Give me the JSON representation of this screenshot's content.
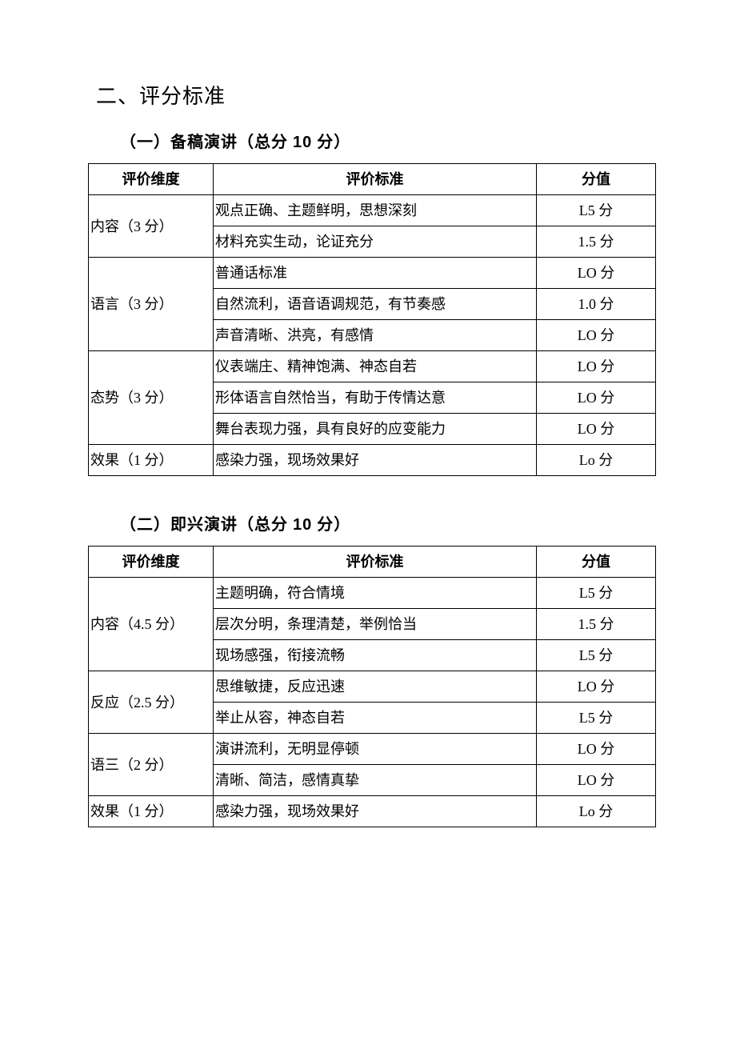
{
  "heading": "二、评分标准",
  "section1": {
    "title_prefix": "（一）备稿演讲（总分 ",
    "title_num": "10",
    "title_suffix": " 分）",
    "headers": [
      "评价维度",
      "评价标准",
      "分值"
    ],
    "groups": [
      {
        "dim": "内容（3 分）",
        "rows": [
          {
            "crit": "观点正确、主题鲜明，思想深刻",
            "score": "L5 分"
          },
          {
            "crit": "材料充实生动，论证充分",
            "score": "1.5 分"
          }
        ]
      },
      {
        "dim": "语言（3 分）",
        "rows": [
          {
            "crit": "普通话标准",
            "score": "LO 分"
          },
          {
            "crit": "自然流利，语音语调规范，有节奏感",
            "score": "1.0 分"
          },
          {
            "crit": "声音清晰、洪亮，有感情",
            "score": "LO 分"
          }
        ]
      },
      {
        "dim": "态势（3 分）",
        "rows": [
          {
            "crit": "仪表端庄、精神饱满、神态自若",
            "score": "LO 分"
          },
          {
            "crit": "形体语言自然恰当，有助于传情达意",
            "score": "LO 分"
          },
          {
            "crit": "舞台表现力强，具有良好的应变能力",
            "score": "LO 分"
          }
        ]
      },
      {
        "dim": "效果（1 分）",
        "rows": [
          {
            "crit": "感染力强，现场效果好",
            "score": "Lo 分"
          }
        ]
      }
    ]
  },
  "section2": {
    "title_prefix": "（二）即兴演讲（总分 ",
    "title_num": "10",
    "title_suffix": " 分）",
    "headers": [
      "评价维度",
      "评价标准",
      "分值"
    ],
    "groups": [
      {
        "dim": "内容（4.5 分）",
        "rows": [
          {
            "crit": "主题明确，符合情境",
            "score": "L5 分"
          },
          {
            "crit": "层次分明，条理清楚，举例恰当",
            "score": "1.5 分"
          },
          {
            "crit": "现场感强，衔接流畅",
            "score": "L5 分"
          }
        ]
      },
      {
        "dim": "反应（2.5 分）",
        "rows": [
          {
            "crit": "思维敏捷，反应迅速",
            "score": "LO 分"
          },
          {
            "crit": "举止从容，神态自若",
            "score": "L5 分"
          }
        ]
      },
      {
        "dim": "语三（2 分）",
        "rows": [
          {
            "crit": "演讲流利，无明显停顿",
            "score": "LO 分"
          },
          {
            "crit": "清晰、简洁，感情真挚",
            "score": "LO 分"
          }
        ]
      },
      {
        "dim": "效果（1 分）",
        "rows": [
          {
            "crit": "感染力强，现场效果好",
            "score": "Lo 分"
          }
        ]
      }
    ]
  }
}
